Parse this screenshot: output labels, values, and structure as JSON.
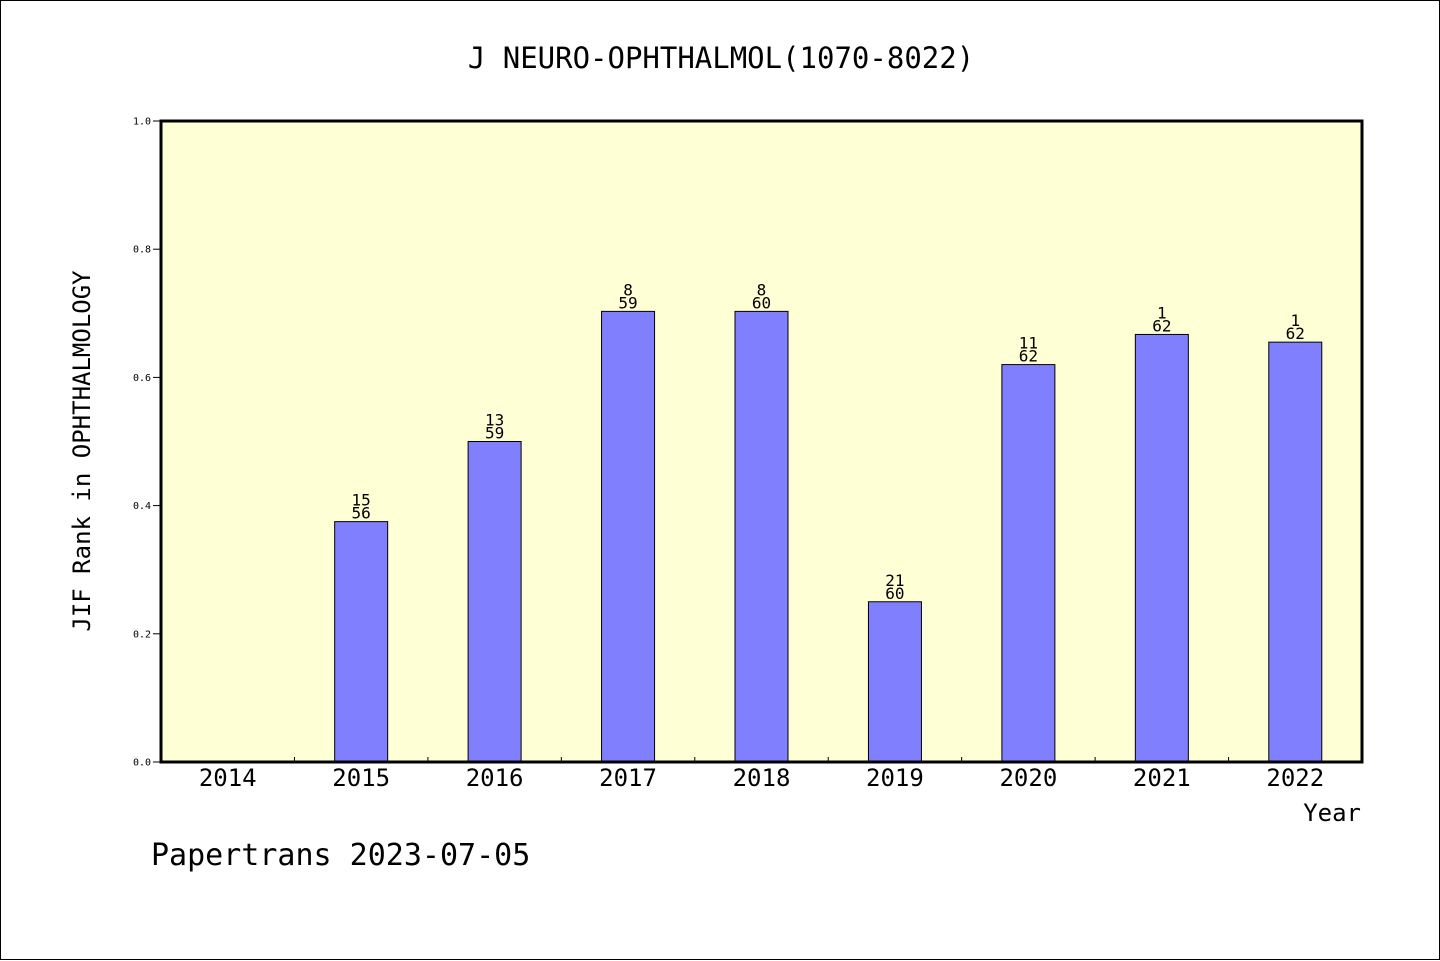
{
  "chart_data": {
    "type": "bar",
    "title": "J NEURO-OPHTHALMOL(1070-8022)",
    "xlabel": "Year",
    "ylabel": "JIF Rank in OPHTHALMOLOGY",
    "ylim": [
      0,
      1.0
    ],
    "yticks": [
      "0.0",
      "0.2",
      "0.4",
      "0.6",
      "0.8",
      "1.0"
    ],
    "categories": [
      "2014",
      "2015",
      "2016",
      "2017",
      "2018",
      "2019",
      "2020",
      "2021",
      "2022"
    ],
    "values": [
      null,
      0.375,
      0.5,
      0.703,
      0.703,
      0.25,
      0.62,
      0.667,
      0.655
    ],
    "labels_top": [
      "",
      "15",
      "13",
      "8",
      "8",
      "21",
      "11",
      "1",
      "1"
    ],
    "labels_bottom": [
      "",
      "56",
      "59",
      "59",
      "60",
      "60",
      "62",
      "62",
      "62"
    ],
    "grid": false,
    "colors": {
      "plot_background": "#ffffd5",
      "bar_fill": "#8080ff",
      "bar_stroke": "#000000"
    }
  },
  "footer": {
    "credit": "Papertrans 2023-07-05"
  }
}
